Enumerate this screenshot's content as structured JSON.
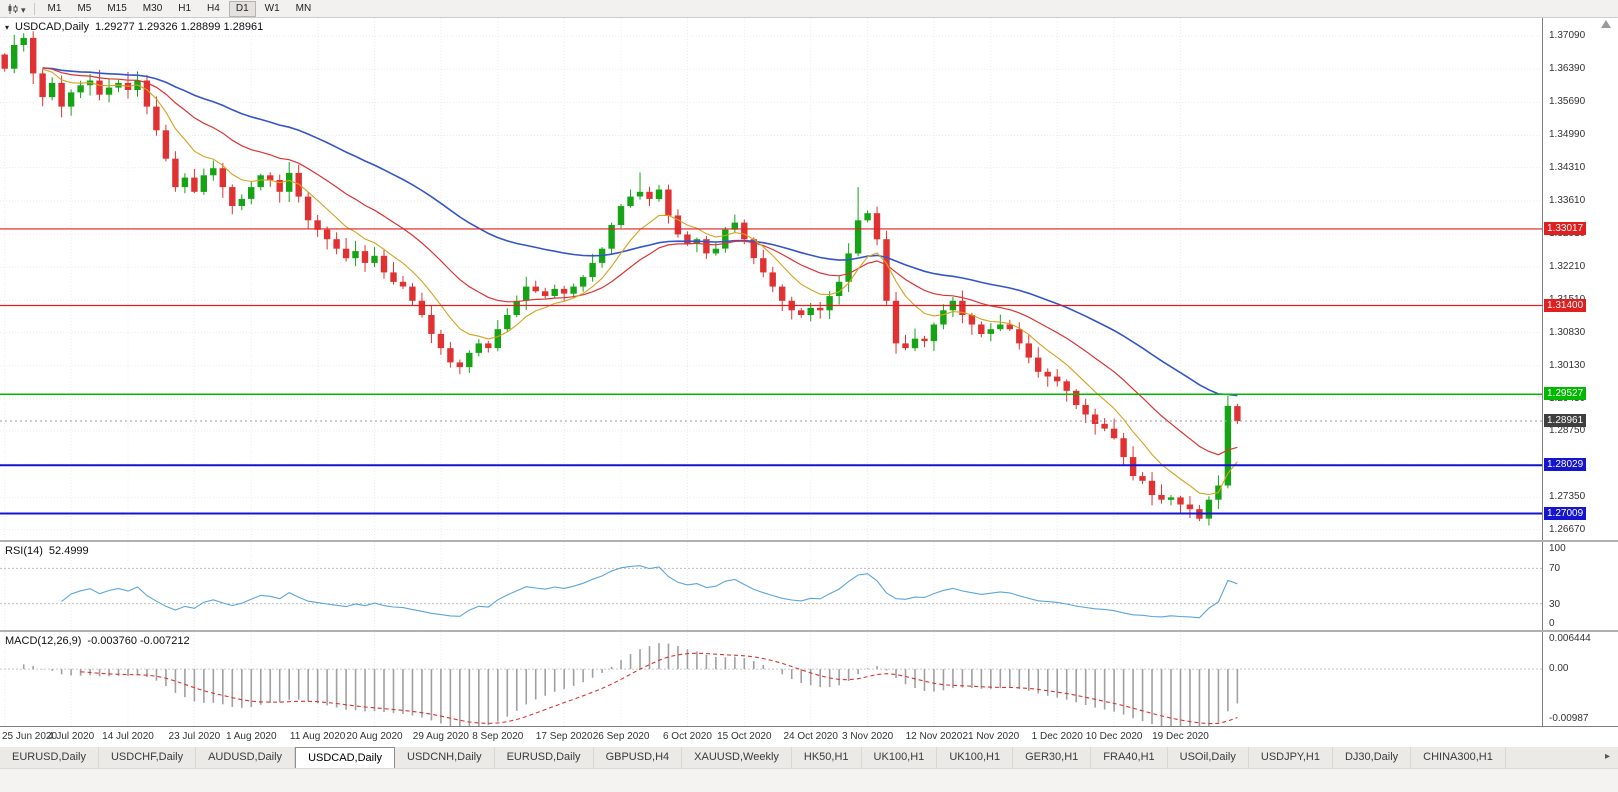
{
  "toolbar": {
    "timeframes": [
      "M1",
      "M5",
      "M15",
      "M30",
      "H1",
      "H4",
      "D1",
      "W1",
      "MN"
    ],
    "active_timeframe": "D1"
  },
  "icons": {
    "chart_type": "candlestick-chart-icon",
    "chart_type_caret": "chevron-down-icon",
    "chart_collapse": "chevron-down-icon",
    "scroll_anchor": "scroll-anchor-icon"
  },
  "chart": {
    "symbol_title": "USDCAD,Daily",
    "ohlc": "1.29277 1.29326 1.28899 1.28961",
    "y_range": [
      1.2645,
      1.3747
    ],
    "y_ticks": [
      "1.37090",
      "1.36390",
      "1.35690",
      "1.34990",
      "1.34310",
      "1.33610",
      "1.32910",
      "1.32210",
      "1.31510",
      "1.30830",
      "1.30130",
      "1.29430",
      "1.28750",
      "1.28050",
      "1.27350",
      "1.26670"
    ],
    "levels": [
      {
        "value": 1.33017,
        "label": "1.33017",
        "color": "#e01f1f",
        "width": 1.2
      },
      {
        "value": 1.314,
        "label": "1.31400",
        "color": "#e01f1f",
        "width": 1.2
      },
      {
        "value": 1.29527,
        "label": "1.29527",
        "color": "#00b800",
        "width": 1.6
      },
      {
        "value": 1.28029,
        "label": "1.28029",
        "color": "#1515d0",
        "width": 2
      },
      {
        "value": 1.27009,
        "label": "1.27009",
        "color": "#1515d0",
        "width": 2
      }
    ],
    "current_price": {
      "value": 1.28961,
      "label": "1.28961"
    },
    "colors": {
      "up": "#15a415",
      "down": "#e03232",
      "ma_fast": "#d6a21e",
      "ma_mid": "#dd3333",
      "ma_slow": "#3355cc",
      "rsi": "#5aa6dc",
      "macd_hist": "#a0a0a0",
      "macd_signal": "#dd3333",
      "current_badge": "#3f3f3f",
      "current_line": "#9a9a9a"
    }
  },
  "chart_data": {
    "type": "candlestick",
    "symbol": "USDCAD",
    "timeframe": "Daily",
    "visible_fraction": 0.805,
    "first_open": 1.367,
    "closes": [
      1.364,
      1.369,
      1.3705,
      1.363,
      1.358,
      1.361,
      1.356,
      1.359,
      1.3605,
      1.3615,
      1.3585,
      1.36,
      1.361,
      1.3595,
      1.3615,
      1.356,
      1.351,
      1.345,
      1.339,
      1.341,
      1.338,
      1.3415,
      1.343,
      1.339,
      1.335,
      1.3365,
      1.339,
      1.3415,
      1.3405,
      1.338,
      1.342,
      1.337,
      1.332,
      1.33,
      1.328,
      1.326,
      1.324,
      1.3255,
      1.323,
      1.3245,
      1.321,
      1.319,
      1.318,
      1.315,
      1.312,
      1.308,
      1.305,
      1.302,
      1.301,
      1.304,
      1.306,
      1.305,
      1.309,
      1.312,
      1.315,
      1.318,
      1.317,
      1.316,
      1.3175,
      1.3165,
      1.318,
      1.32,
      1.323,
      1.326,
      1.331,
      1.335,
      1.337,
      1.338,
      1.3365,
      1.3385,
      1.333,
      1.329,
      1.327,
      1.328,
      1.325,
      1.326,
      1.33,
      1.3315,
      1.328,
      1.324,
      1.321,
      1.318,
      1.315,
      1.313,
      1.312,
      1.3135,
      1.313,
      1.316,
      1.319,
      1.325,
      1.332,
      1.3335,
      1.328,
      1.315,
      1.306,
      1.305,
      1.307,
      1.3065,
      1.31,
      1.313,
      1.315,
      1.312,
      1.31,
      1.308,
      1.309,
      1.31,
      1.309,
      1.306,
      1.303,
      1.3,
      1.299,
      1.298,
      1.296,
      1.293,
      1.291,
      1.289,
      1.288,
      1.286,
      1.282,
      1.278,
      1.277,
      1.274,
      1.273,
      1.2735,
      1.272,
      1.271,
      1.269,
      1.273,
      1.276,
      1.2928,
      1.28961
    ],
    "extremes": {
      "2": {
        "high": 1.3715
      },
      "48": {
        "low": 1.2995
      },
      "67": {
        "high": 1.3421
      },
      "90": {
        "high": 1.339
      },
      "126": {
        "low": 1.2685
      },
      "129": {
        "high": 1.2949
      }
    },
    "last_candle": {
      "open": 1.29277,
      "high": 1.29326,
      "low": 1.28899,
      "close": 1.28961
    },
    "x_labels": [
      {
        "text": "25 Jun 2020",
        "index": 0
      },
      {
        "text": "4 Jul 2020",
        "index": 7
      },
      {
        "text": "14 Jul 2020",
        "index": 13
      },
      {
        "text": "23 Jul 2020",
        "index": 20
      },
      {
        "text": "1 Aug 2020",
        "index": 26
      },
      {
        "text": "11 Aug 2020",
        "index": 33
      },
      {
        "text": "20 Aug 2020",
        "index": 39
      },
      {
        "text": "29 Aug 2020",
        "index": 46
      },
      {
        "text": "8 Sep 2020",
        "index": 52
      },
      {
        "text": "17 Sep 2020",
        "index": 59
      },
      {
        "text": "26 Sep 2020",
        "index": 65
      },
      {
        "text": "6 Oct 2020",
        "index": 72
      },
      {
        "text": "15 Oct 2020",
        "index": 78
      },
      {
        "text": "24 Oct 2020",
        "index": 85
      },
      {
        "text": "3 Nov 2020",
        "index": 91
      },
      {
        "text": "12 Nov 2020",
        "index": 98
      },
      {
        "text": "21 Nov 2020",
        "index": 104
      },
      {
        "text": "1 Dec 2020",
        "index": 111
      },
      {
        "text": "10 Dec 2020",
        "index": 117
      },
      {
        "text": "19 Dec 2020",
        "index": 124
      }
    ]
  },
  "rsi": {
    "title": "RSI(14)",
    "value": "52.4999",
    "period": 14,
    "axis_labels": [
      "100",
      "70",
      "30",
      "0"
    ],
    "level_lines": [
      70,
      30
    ]
  },
  "macd": {
    "title": "MACD(12,26,9)",
    "values": "-0.003760 -0.007212",
    "fast": 12,
    "slow": 26,
    "signal": 9,
    "axis_labels": [
      "0.006444",
      "0.00",
      "-0.00987"
    ],
    "range": [
      -0.00987,
      0.006444
    ]
  },
  "tabs": {
    "items": [
      "EURUSD,Daily",
      "USDCHF,Daily",
      "AUDUSD,Daily",
      "USDCAD,Daily",
      "USDCNH,Daily",
      "EURUSD,Daily",
      "GBPUSD,H4",
      "XAUUSD,Weekly",
      "HK50,H1",
      "UK100,H1",
      "UK100,H1",
      "GER30,H1",
      "FRA40,H1",
      "USOil,Daily",
      "USDJPY,H1",
      "DJ30,Daily",
      "CHINA300,H1"
    ],
    "active_index": 3,
    "scroll_right_icon": "chevron-right-icon"
  }
}
